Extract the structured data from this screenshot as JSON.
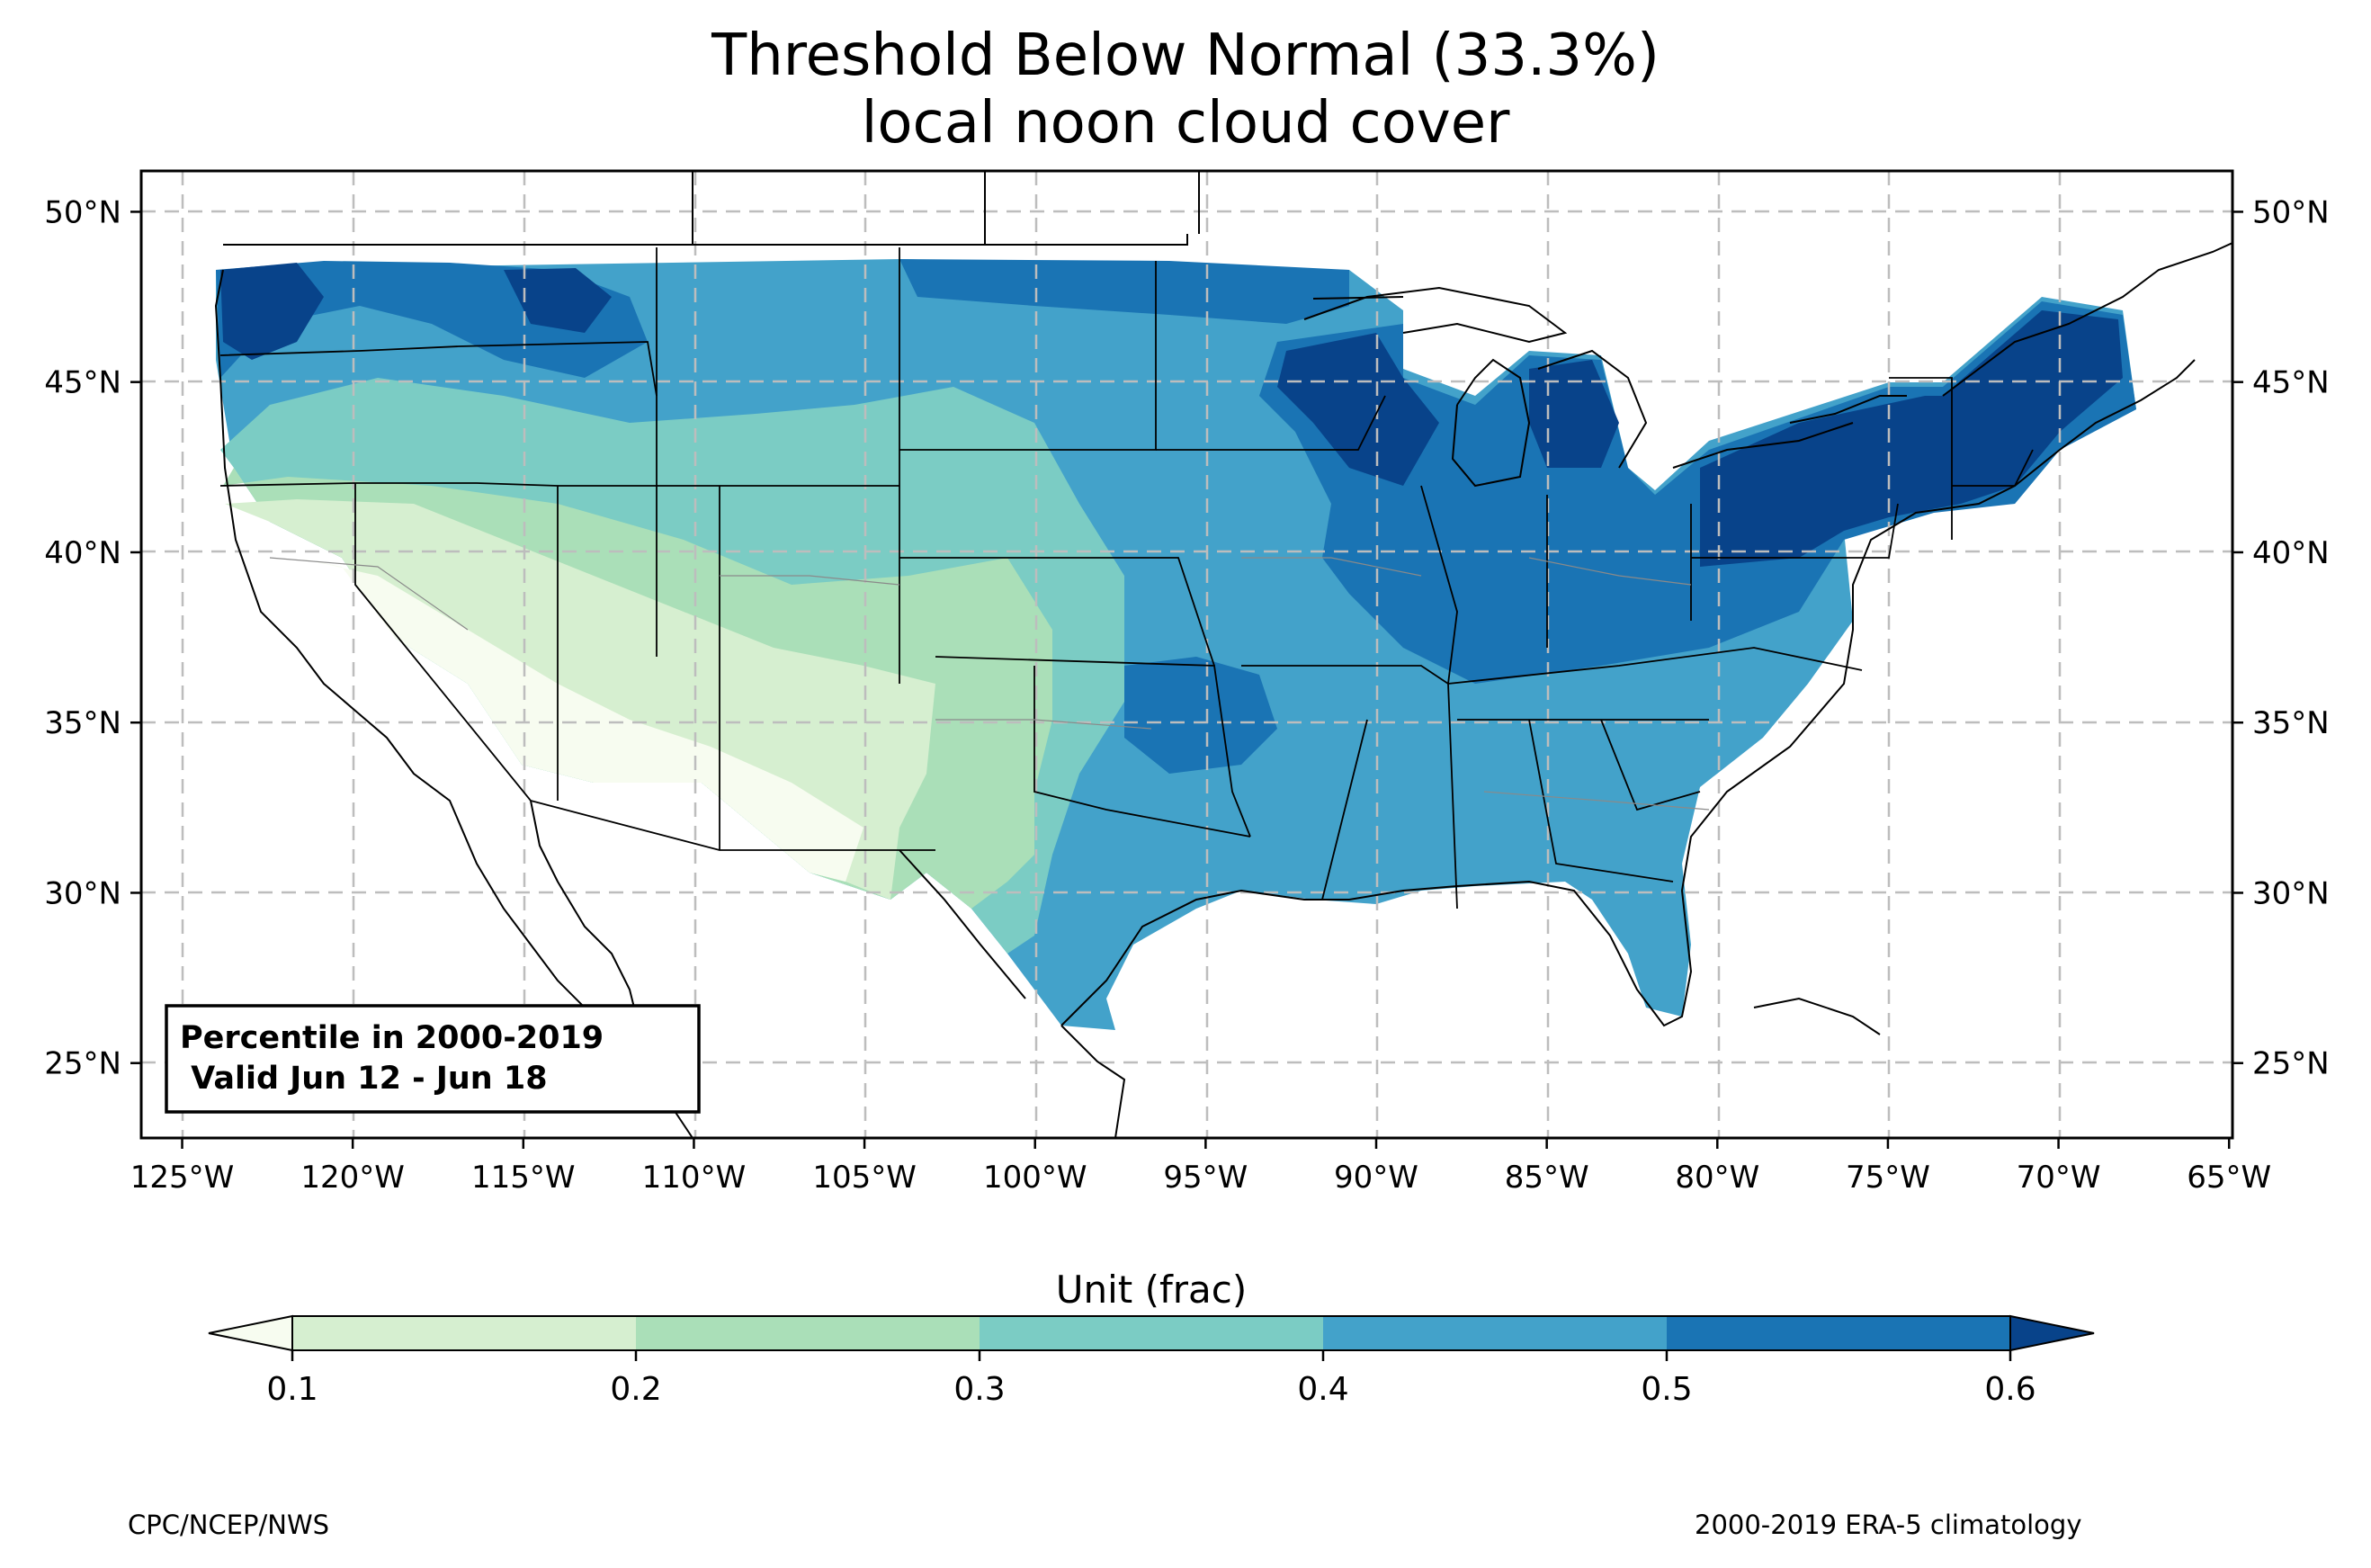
{
  "title": {
    "line1": "Threshold Below Normal (33.3%)",
    "line2": "local noon cloud cover"
  },
  "map": {
    "lon_range": [
      -126.2,
      -64.9
    ],
    "lat_range": [
      22.8,
      51.2
    ],
    "lon_ticks": [
      "125°W",
      "120°W",
      "115°W",
      "110°W",
      "105°W",
      "100°W",
      "95°W",
      "90°W",
      "85°W",
      "80°W",
      "75°W",
      "70°W",
      "65°W"
    ],
    "lat_ticks": [
      "25°N",
      "30°N",
      "35°N",
      "40°N",
      "45°N",
      "50°N"
    ],
    "gridlines": true
  },
  "inset": {
    "line1": "Percentile in 2000-2019",
    "line2": " Valid Jun 12 - Jun 18"
  },
  "colorbar": {
    "label": "Unit (frac)",
    "ticks": [
      "0.1",
      "0.2",
      "0.3",
      "0.4",
      "0.5",
      "0.6"
    ],
    "colors": [
      "#f7fcf0",
      "#d6efd0",
      "#aadfb8",
      "#7bccc4",
      "#43a2ca",
      "#1a74b4",
      "#08438a"
    ],
    "extend": "both"
  },
  "footer": {
    "left": "CPC/NCEP/NWS",
    "right": "2000-2019 ERA-5 climatology"
  }
}
